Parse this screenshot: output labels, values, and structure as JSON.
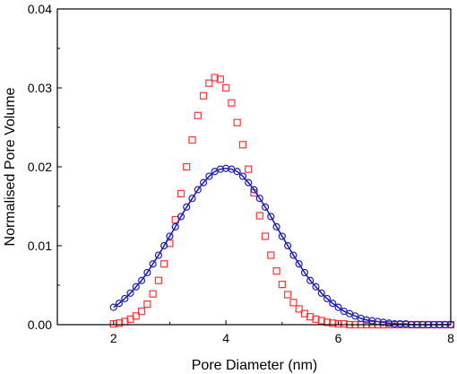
{
  "chart_data": {
    "type": "scatter",
    "xlabel": "Pore Diameter (nm)",
    "ylabel": "Normalised Pore Volume",
    "xlim": [
      1,
      8
    ],
    "ylim": [
      0,
      0.04
    ],
    "x_ticks": [
      "2",
      "4",
      "6",
      "8"
    ],
    "y_ticks": [
      "0.00",
      "0.01",
      "0.02",
      "0.03",
      "0.04"
    ],
    "grid": false,
    "legend": "none",
    "series": [
      {
        "marker": "square",
        "color": "#ff3333",
        "x": [
          2.0,
          2.1,
          2.2,
          2.3,
          2.4,
          2.5,
          2.6,
          2.7,
          2.8,
          2.9,
          3.0,
          3.1,
          3.2,
          3.3,
          3.4,
          3.5,
          3.6,
          3.7,
          3.8,
          3.9,
          4.0,
          4.1,
          4.2,
          4.3,
          4.4,
          4.5,
          4.6,
          4.7,
          4.8,
          4.9,
          5.0,
          5.1,
          5.2,
          5.3,
          5.4,
          5.5,
          5.6,
          5.7,
          5.8,
          5.9,
          6.0,
          6.1,
          6.2,
          6.3,
          6.4,
          6.5,
          6.6,
          6.7,
          6.8,
          6.9,
          7.0,
          7.1,
          7.2,
          7.3,
          7.4,
          7.5,
          7.6,
          7.7,
          7.8,
          7.9,
          8.0
        ],
        "y": [
          0.0001,
          0.0002,
          0.0004,
          0.0007,
          0.0011,
          0.0017,
          0.0026,
          0.0039,
          0.0056,
          0.0077,
          0.0103,
          0.0133,
          0.0166,
          0.02,
          0.0234,
          0.0265,
          0.029,
          0.0306,
          0.0313,
          0.0311,
          0.03,
          0.0281,
          0.0256,
          0.0228,
          0.0197,
          0.0167,
          0.0138,
          0.0112,
          0.0088,
          0.0068,
          0.0051,
          0.0038,
          0.0028,
          0.002,
          0.0014,
          0.001,
          0.0007,
          0.0005,
          0.0003,
          0.0002,
          0.0001,
          0.0001,
          0.0,
          0.0,
          0.0,
          0.0,
          0.0,
          0.0,
          0.0,
          0.0,
          0.0,
          0.0,
          0.0,
          0.0,
          0.0,
          0.0,
          0.0,
          0.0,
          0.0,
          0.0,
          0.0
        ]
      },
      {
        "marker": "circle",
        "color": "#1f1fb4",
        "line": true,
        "x": [
          2.0,
          2.1,
          2.2,
          2.3,
          2.4,
          2.5,
          2.6,
          2.7,
          2.8,
          2.9,
          3.0,
          3.1,
          3.2,
          3.3,
          3.4,
          3.5,
          3.6,
          3.7,
          3.8,
          3.9,
          4.0,
          4.1,
          4.2,
          4.3,
          4.4,
          4.5,
          4.6,
          4.7,
          4.8,
          4.9,
          5.0,
          5.1,
          5.2,
          5.3,
          5.4,
          5.5,
          5.6,
          5.7,
          5.8,
          5.9,
          6.0,
          6.1,
          6.2,
          6.3,
          6.4,
          6.5,
          6.6,
          6.7,
          6.8,
          6.9,
          7.0,
          7.1,
          7.2,
          7.3,
          7.4,
          7.5,
          7.6,
          7.7,
          7.8,
          7.9,
          8.0
        ],
        "y": [
          0.0022,
          0.0027,
          0.0033,
          0.004,
          0.0048,
          0.0056,
          0.0066,
          0.0077,
          0.0088,
          0.01,
          0.0112,
          0.0124,
          0.0137,
          0.0149,
          0.016,
          0.0171,
          0.018,
          0.0188,
          0.0194,
          0.0197,
          0.0198,
          0.0197,
          0.0194,
          0.0188,
          0.018,
          0.0171,
          0.016,
          0.0149,
          0.0137,
          0.0124,
          0.0112,
          0.01,
          0.0088,
          0.0077,
          0.0066,
          0.0056,
          0.0048,
          0.004,
          0.0033,
          0.0027,
          0.0022,
          0.0017,
          0.0014,
          0.0011,
          0.0008,
          0.0006,
          0.0005,
          0.0004,
          0.0003,
          0.0002,
          0.0001,
          0.0001,
          0.0001,
          0.0,
          0.0,
          0.0,
          0.0,
          0.0,
          0.0,
          0.0,
          0.0
        ]
      }
    ]
  }
}
